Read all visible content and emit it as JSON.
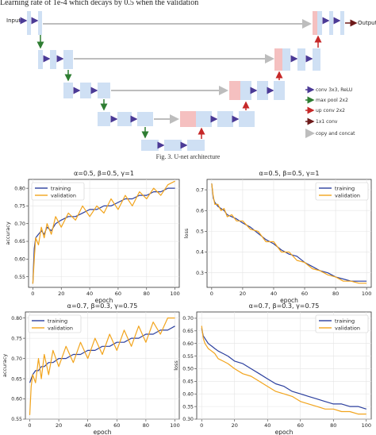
{
  "paper": {
    "top_text": "Learning rate of 1e-4 which decays by 0.5 when the validation",
    "figure_caption": "Fig. 3.   U-net architecture"
  },
  "unet": {
    "input_label": "Input",
    "output_label": "Output",
    "legend": [
      {
        "label": "conv 3x3, ReLU",
        "color": "#4b3a96"
      },
      {
        "label": "max pool 2x2",
        "color": "#2e7d32"
      },
      {
        "label": "up conv 2x2",
        "color": "#c62828"
      },
      {
        "label": "1x1 conv",
        "color": "#6d1a1a"
      },
      {
        "label": "copy and concat",
        "color": "#bdbdbd"
      }
    ]
  },
  "chart_data": [
    {
      "type": "line",
      "title": "α=0.5, β=0.5, γ=1",
      "xlabel": "epoch",
      "ylabel": "accuracy",
      "xlim": [
        -3,
        103
      ],
      "ylim": [
        0.52,
        0.825
      ],
      "xticks": [
        0,
        20,
        40,
        60,
        80,
        100
      ],
      "yticks": [
        0.55,
        0.6,
        0.65,
        0.7,
        0.75,
        0.8
      ],
      "ytick_labels": [
        "0.55",
        "0.60",
        "0.65",
        "0.70",
        "0.75",
        "0.80"
      ],
      "grid": true,
      "legend_position": "top-left",
      "series": [
        {
          "name": "training",
          "color": "#2b3f9e",
          "x": [
            0,
            1,
            2,
            4,
            6,
            8,
            10,
            13,
            16,
            20,
            25,
            30,
            35,
            40,
            45,
            50,
            55,
            60,
            65,
            70,
            75,
            80,
            85,
            90,
            95,
            100
          ],
          "y": [
            0.53,
            0.63,
            0.66,
            0.67,
            0.68,
            0.67,
            0.69,
            0.68,
            0.7,
            0.71,
            0.72,
            0.72,
            0.73,
            0.74,
            0.74,
            0.75,
            0.75,
            0.76,
            0.77,
            0.77,
            0.78,
            0.78,
            0.79,
            0.79,
            0.8,
            0.8
          ]
        },
        {
          "name": "validation",
          "color": "#f2a41c",
          "x": [
            0,
            1,
            2,
            4,
            6,
            8,
            10,
            13,
            16,
            20,
            25,
            30,
            35,
            40,
            45,
            50,
            55,
            60,
            65,
            70,
            75,
            80,
            85,
            90,
            95,
            100
          ],
          "y": [
            0.53,
            0.6,
            0.66,
            0.64,
            0.69,
            0.66,
            0.7,
            0.67,
            0.72,
            0.69,
            0.73,
            0.71,
            0.75,
            0.72,
            0.75,
            0.73,
            0.77,
            0.74,
            0.78,
            0.75,
            0.79,
            0.77,
            0.8,
            0.78,
            0.81,
            0.82
          ]
        }
      ]
    },
    {
      "type": "line",
      "title": "α=0.5, β=0.5, γ=1",
      "xlabel": "epoch",
      "ylabel": "loss",
      "xlim": [
        -3,
        103
      ],
      "ylim": [
        0.23,
        0.75
      ],
      "xticks": [
        0,
        20,
        40,
        60,
        80,
        100
      ],
      "yticks": [
        0.3,
        0.4,
        0.5,
        0.6,
        0.7
      ],
      "ytick_labels": [
        "0.3",
        "0.4",
        "0.5",
        "0.6",
        "0.7"
      ],
      "grid": true,
      "legend_position": "top-right",
      "series": [
        {
          "name": "training",
          "color": "#2b3f9e",
          "x": [
            0,
            1,
            2,
            4,
            6,
            8,
            10,
            13,
            16,
            20,
            25,
            30,
            35,
            40,
            45,
            50,
            55,
            60,
            65,
            70,
            75,
            80,
            85,
            90,
            95,
            100
          ],
          "y": [
            0.73,
            0.66,
            0.64,
            0.62,
            0.61,
            0.6,
            0.58,
            0.57,
            0.56,
            0.54,
            0.52,
            0.49,
            0.46,
            0.44,
            0.41,
            0.39,
            0.38,
            0.35,
            0.33,
            0.31,
            0.3,
            0.28,
            0.27,
            0.26,
            0.26,
            0.26
          ]
        },
        {
          "name": "validation",
          "color": "#f2a41c",
          "x": [
            0,
            1,
            2,
            4,
            6,
            8,
            10,
            13,
            16,
            20,
            25,
            30,
            35,
            40,
            45,
            50,
            55,
            60,
            65,
            70,
            75,
            80,
            85,
            90,
            95,
            100
          ],
          "y": [
            0.73,
            0.67,
            0.63,
            0.63,
            0.6,
            0.61,
            0.57,
            0.58,
            0.55,
            0.55,
            0.51,
            0.5,
            0.45,
            0.45,
            0.4,
            0.4,
            0.36,
            0.35,
            0.32,
            0.31,
            0.29,
            0.28,
            0.26,
            0.26,
            0.25,
            0.25
          ]
        }
      ]
    },
    {
      "type": "line",
      "title": "α=0.7, β=0.3, γ=0.75",
      "xlabel": "epoch",
      "ylabel": "accuracy",
      "xlim": [
        -3,
        103
      ],
      "ylim": [
        0.55,
        0.815
      ],
      "xticks": [
        0,
        20,
        40,
        60,
        80,
        100
      ],
      "yticks": [
        0.55,
        0.6,
        0.65,
        0.7,
        0.75,
        0.8
      ],
      "ytick_labels": [
        "0.55",
        "0.60",
        "0.65",
        "0.70",
        "0.75",
        "0.80"
      ],
      "grid": true,
      "legend_position": "top-left",
      "series": [
        {
          "name": "training",
          "color": "#2b3f9e",
          "x": [
            0,
            2,
            4,
            6,
            8,
            10,
            13,
            16,
            20,
            25,
            30,
            35,
            40,
            45,
            50,
            55,
            60,
            65,
            70,
            75,
            80,
            85,
            90,
            95,
            100
          ],
          "y": [
            0.64,
            0.66,
            0.67,
            0.67,
            0.68,
            0.68,
            0.69,
            0.69,
            0.7,
            0.7,
            0.71,
            0.71,
            0.72,
            0.72,
            0.73,
            0.73,
            0.74,
            0.74,
            0.75,
            0.75,
            0.76,
            0.76,
            0.77,
            0.77,
            0.78
          ]
        },
        {
          "name": "validation",
          "color": "#f2a41c",
          "x": [
            0,
            1,
            2,
            4,
            6,
            8,
            10,
            13,
            16,
            20,
            25,
            30,
            35,
            40,
            45,
            50,
            55,
            60,
            65,
            70,
            75,
            80,
            85,
            90,
            95,
            100
          ],
          "y": [
            0.56,
            0.63,
            0.66,
            0.64,
            0.7,
            0.65,
            0.71,
            0.66,
            0.72,
            0.68,
            0.73,
            0.69,
            0.74,
            0.7,
            0.75,
            0.71,
            0.76,
            0.72,
            0.77,
            0.73,
            0.78,
            0.74,
            0.79,
            0.76,
            0.8,
            0.8
          ]
        }
      ]
    },
    {
      "type": "line",
      "title": "α=0.7, β=0.3, γ=0.75",
      "xlabel": "epoch",
      "ylabel": "loss",
      "xlim": [
        -3,
        103
      ],
      "ylim": [
        0.3,
        0.725
      ],
      "xticks": [
        0,
        20,
        40,
        60,
        80,
        100
      ],
      "yticks": [
        0.3,
        0.35,
        0.4,
        0.45,
        0.5,
        0.55,
        0.6,
        0.65,
        0.7
      ],
      "ytick_labels": [
        "0.30",
        "0.35",
        "0.40",
        "0.45",
        "0.50",
        "0.55",
        "0.60",
        "0.65",
        "0.70"
      ],
      "grid": true,
      "legend_position": "top-right",
      "series": [
        {
          "name": "training",
          "color": "#2b3f9e",
          "x": [
            0,
            1,
            2,
            4,
            6,
            8,
            10,
            13,
            16,
            20,
            25,
            30,
            35,
            40,
            45,
            50,
            55,
            60,
            65,
            70,
            75,
            80,
            85,
            90,
            95,
            100
          ],
          "y": [
            0.66,
            0.63,
            0.62,
            0.6,
            0.59,
            0.58,
            0.57,
            0.56,
            0.55,
            0.53,
            0.52,
            0.5,
            0.48,
            0.46,
            0.44,
            0.43,
            0.41,
            0.4,
            0.39,
            0.38,
            0.37,
            0.36,
            0.36,
            0.35,
            0.35,
            0.34
          ]
        },
        {
          "name": "validation",
          "color": "#f2a41c",
          "x": [
            0,
            1,
            2,
            4,
            6,
            8,
            10,
            13,
            16,
            20,
            25,
            30,
            35,
            40,
            45,
            50,
            55,
            60,
            65,
            70,
            75,
            80,
            85,
            90,
            95,
            100
          ],
          "y": [
            0.67,
            0.62,
            0.6,
            0.58,
            0.57,
            0.56,
            0.54,
            0.53,
            0.52,
            0.5,
            0.48,
            0.47,
            0.45,
            0.43,
            0.41,
            0.4,
            0.39,
            0.37,
            0.36,
            0.35,
            0.34,
            0.34,
            0.33,
            0.33,
            0.32,
            0.32
          ]
        }
      ]
    }
  ]
}
